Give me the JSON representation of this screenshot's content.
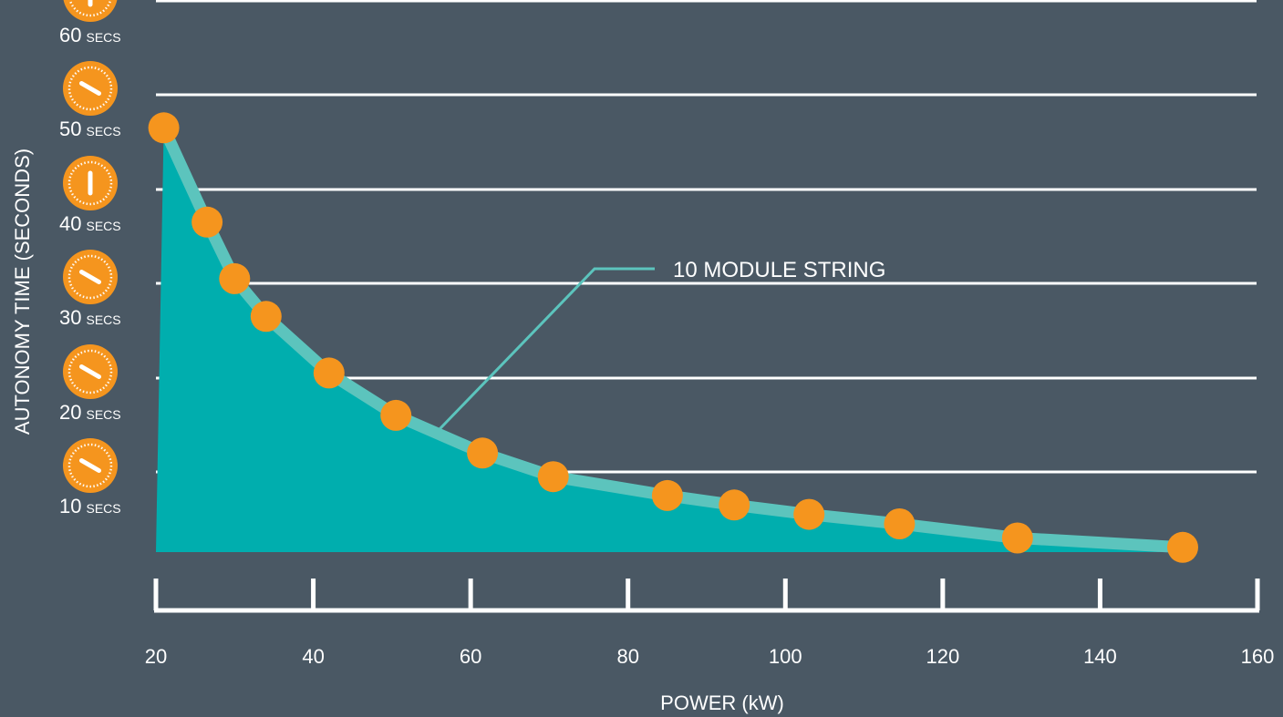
{
  "colors": {
    "background": "#4a5864",
    "area": "#00aeae",
    "line": "#5cc4bd",
    "point": "#f5951e",
    "grid": "#ffffff",
    "text": "#ffffff"
  },
  "chart_data": {
    "type": "area",
    "title": "",
    "xlabel": "POWER (kW)",
    "ylabel": "AUTONOMY TIME (SECONDS)",
    "xlim": [
      20,
      160
    ],
    "ylim": [
      5,
      60
    ],
    "x_ticks": [
      20,
      40,
      60,
      80,
      100,
      120,
      140,
      160
    ],
    "y_ticks": [
      {
        "value": 10,
        "number": "10",
        "unit": "SECS"
      },
      {
        "value": 20,
        "number": "20",
        "unit": "SECS"
      },
      {
        "value": 30,
        "number": "30",
        "unit": "SECS"
      },
      {
        "value": 40,
        "number": "40",
        "unit": "SECS"
      },
      {
        "value": 50,
        "number": "50",
        "unit": "SECS"
      },
      {
        "value": 60,
        "number": "60",
        "unit": "SECS"
      }
    ],
    "grid": true,
    "tick_icon": "stopwatch-icon",
    "series": [
      {
        "name": "10 MODULE STRING",
        "x": [
          21,
          26.5,
          30,
          34,
          42,
          50.5,
          61.5,
          70.5,
          85,
          93.5,
          103,
          114.5,
          129.5,
          150.5
        ],
        "y": [
          50,
          40,
          34,
          30,
          24,
          19.5,
          15.5,
          13,
          11,
          10,
          9,
          8,
          6.5,
          5.5
        ]
      }
    ],
    "annotations": [
      {
        "text": "10 MODULE STRING",
        "points_to_x": 56,
        "points_to_y": 18
      }
    ]
  }
}
